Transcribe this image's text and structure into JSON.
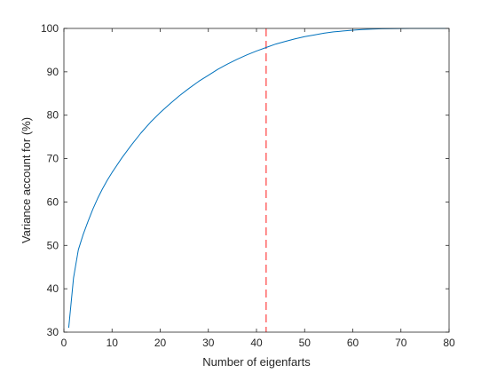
{
  "chart_data": {
    "type": "line",
    "title": "",
    "xlabel": "Number of eigenfarts",
    "ylabel": "Variance account for (%)",
    "xlim": [
      0,
      80
    ],
    "ylim": [
      30,
      100
    ],
    "x_ticks": [
      0,
      10,
      20,
      30,
      40,
      50,
      60,
      70,
      80
    ],
    "y_ticks": [
      30,
      40,
      50,
      60,
      70,
      80,
      90,
      100
    ],
    "x_tick_labels": [
      "0",
      "10",
      "20",
      "30",
      "40",
      "50",
      "60",
      "70",
      "80"
    ],
    "y_tick_labels": [
      "30",
      "40",
      "50",
      "60",
      "70",
      "80",
      "90",
      "100"
    ],
    "grid": false,
    "series": [
      {
        "color": "#0072BD",
        "style": "solid",
        "x": [
          1,
          2,
          3,
          4,
          5,
          6,
          7,
          8,
          9,
          10,
          12,
          14,
          16,
          18,
          20,
          22,
          24,
          26,
          28,
          30,
          32,
          34,
          36,
          38,
          40,
          42,
          44,
          46,
          48,
          50,
          52,
          54,
          56,
          58,
          60,
          62,
          64,
          66,
          68,
          70,
          72,
          74,
          76,
          78,
          80
        ],
        "y": [
          31.0,
          42.5,
          49.0,
          52.5,
          55.5,
          58.3,
          60.8,
          63.0,
          65.0,
          66.8,
          70.1,
          73.1,
          75.9,
          78.4,
          80.6,
          82.6,
          84.5,
          86.2,
          87.8,
          89.2,
          90.6,
          91.8,
          92.9,
          93.9,
          94.8,
          95.6,
          96.4,
          97.0,
          97.6,
          98.1,
          98.5,
          98.9,
          99.2,
          99.4,
          99.6,
          99.75,
          99.85,
          99.92,
          99.96,
          99.98,
          100.0,
          100.0,
          100.0,
          100.0,
          100.0
        ]
      }
    ],
    "reference_lines": [
      {
        "orientation": "vertical",
        "x": 42,
        "color": "#FF4040",
        "style": "dashed"
      }
    ]
  }
}
